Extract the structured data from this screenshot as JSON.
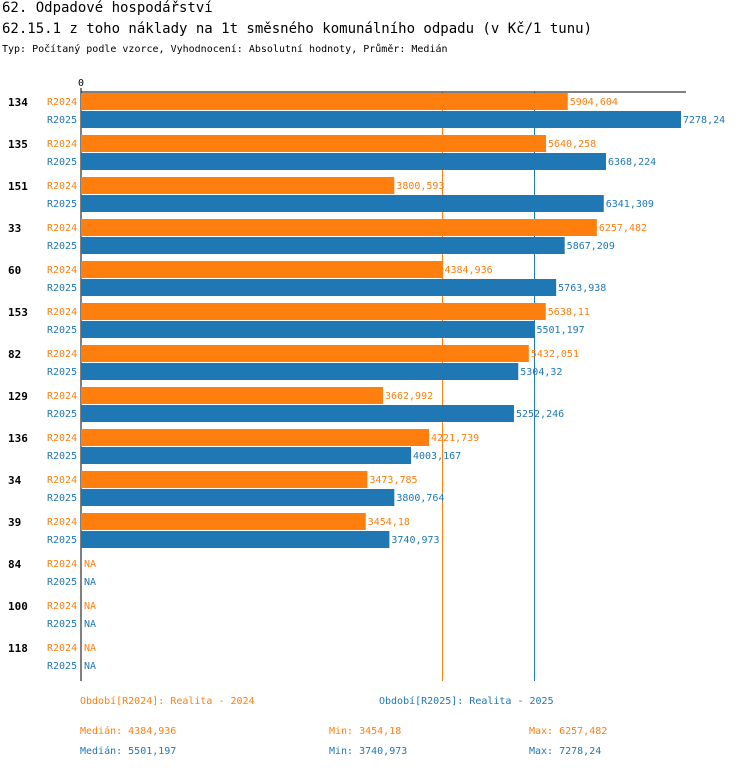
{
  "header": {
    "title": "62. Odpadové hospodářství",
    "subtitle": "62.15.1 z toho náklady na 1t směsného komunálního odpadu (v Kč/1 tunu)",
    "info": "Typ: Počítaný podle vzorce, Vyhodnocení: Absolutní hodnoty, Průměr: Medián"
  },
  "colors": {
    "R2024": "#ff7f0e",
    "R2025": "#1f77b4"
  },
  "chart_data": {
    "type": "bar",
    "orientation": "horizontal",
    "xlim": [
      0,
      7278.24
    ],
    "x_tick_label": "0",
    "categories": [
      "134",
      "135",
      "151",
      "33",
      "60",
      "153",
      "82",
      "129",
      "136",
      "34",
      "39",
      "84",
      "100",
      "118"
    ],
    "series": [
      {
        "name": "R2024",
        "values": [
          5904.604,
          5640.258,
          3800.593,
          6257.482,
          4384.936,
          5638.11,
          5432.051,
          3662.992,
          4221.739,
          3473.785,
          3454.18,
          null,
          null,
          null
        ],
        "labels": [
          "5904,604",
          "5640,258",
          "3800,593",
          "6257,482",
          "4384,936",
          "5638,11",
          "5432,051",
          "3662,992",
          "4221,739",
          "3473,785",
          "3454,18",
          "NA",
          "NA",
          "NA"
        ]
      },
      {
        "name": "R2025",
        "values": [
          7278.24,
          6368.224,
          6341.309,
          5867.209,
          5763.938,
          5501.197,
          5304.32,
          5252.246,
          4003.167,
          3800.764,
          3740.973,
          null,
          null,
          null
        ],
        "labels": [
          "7278,24",
          "6368,224",
          "6341,309",
          "5867,209",
          "5763,938",
          "5501,197",
          "5304,32",
          "5252,246",
          "4003,167",
          "3800,764",
          "3740,973",
          "NA",
          "NA",
          "NA"
        ]
      }
    ],
    "median_lines": {
      "R2024": 4384.936,
      "R2025": 5501.197
    }
  },
  "legend": {
    "period_2024": "Období[R2024]: Realita - 2024",
    "period_2025": "Období[R2025]: Realita - 2025",
    "stats_2024": {
      "median": "Medián: 4384,936",
      "min": "Min: 3454,18",
      "max": "Max: 6257,482"
    },
    "stats_2025": {
      "median": "Medián: 5501,197",
      "min": "Min: 3740,973",
      "max": "Max: 7278,24"
    }
  }
}
